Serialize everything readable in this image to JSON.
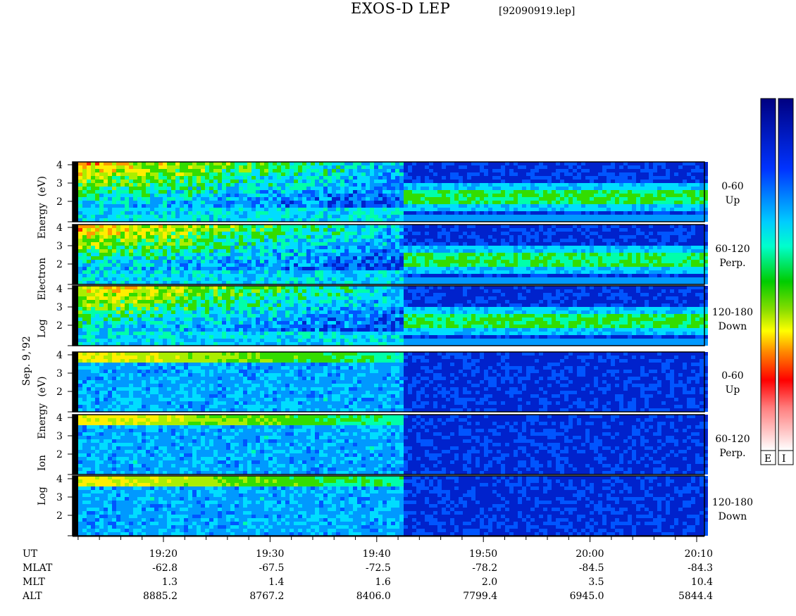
{
  "title": "EXOS-D LEP",
  "file": "[92090919.lep]",
  "date_label": "Sep. 9,'92",
  "electron_axis_label": [
    "Log",
    "Electron",
    "Energy",
    "(eV)"
  ],
  "ion_axis_label": [
    "Log",
    "Ion",
    "Energy",
    "(eV)"
  ],
  "panel_labels": [
    {
      "range": "0-60",
      "dir": "Up"
    },
    {
      "range": "60-120",
      "dir": "Perp."
    },
    {
      "range": "120-180",
      "dir": "Down"
    },
    {
      "range": "0-60",
      "dir": "Up"
    },
    {
      "range": "60-120",
      "dir": "Perp."
    },
    {
      "range": "120-180",
      "dir": "Down"
    }
  ],
  "colorbar_labels": [
    "E",
    "I"
  ],
  "chart_data": {
    "type": "heatmap",
    "title": "EXOS-D LEP",
    "yticks": [
      "2",
      "3",
      "4"
    ],
    "time_axis": {
      "rows": [
        "UT",
        "MLAT",
        "MLT",
        "ALT"
      ],
      "columns": [
        {
          "UT": "19:20",
          "MLAT": "-62.8",
          "MLT": "1.3",
          "ALT": "8885.2"
        },
        {
          "UT": "19:30",
          "MLAT": "-67.5",
          "MLT": "1.4",
          "ALT": "8767.2"
        },
        {
          "UT": "19:40",
          "MLAT": "-72.5",
          "MLT": "1.6",
          "ALT": "8406.0"
        },
        {
          "UT": "19:50",
          "MLAT": "-78.2",
          "MLT": "2.0",
          "ALT": "7799.4"
        },
        {
          "UT": "20:00",
          "MLAT": "-84.5",
          "MLT": "3.5",
          "ALT": "6945.0"
        },
        {
          "UT": "20:10",
          "MLAT": "-84.3",
          "MLT": "10.4",
          "ALT": "5844.4"
        }
      ]
    },
    "panels": [
      {
        "species": "Electron",
        "pitch_angle": "0-60",
        "direction": "Up"
      },
      {
        "species": "Electron",
        "pitch_angle": "60-120",
        "direction": "Perp."
      },
      {
        "species": "Electron",
        "pitch_angle": "120-180",
        "direction": "Down"
      },
      {
        "species": "Ion",
        "pitch_angle": "0-60",
        "direction": "Up"
      },
      {
        "species": "Ion",
        "pitch_angle": "60-120",
        "direction": "Perp."
      },
      {
        "species": "Ion",
        "pitch_angle": "120-180",
        "direction": "Down"
      }
    ],
    "colorbar": {
      "colors": [
        "#ffffff",
        "#ff0000",
        "#ff8800",
        "#ffff00",
        "#00cc00",
        "#00ffff",
        "#0066ff",
        "#000088"
      ]
    }
  }
}
